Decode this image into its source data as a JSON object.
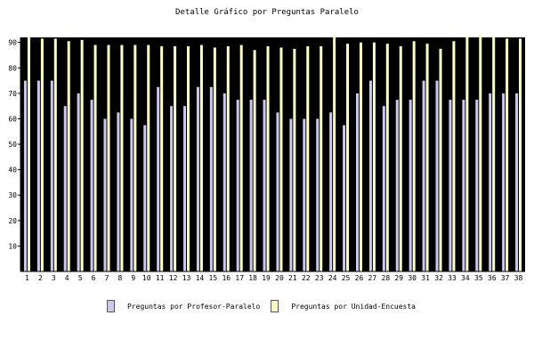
{
  "chart_data": {
    "type": "bar",
    "title": "Detalle Gráfico por Preguntas Paralelo",
    "xlabel": "",
    "ylabel": "",
    "ylim": [
      0,
      92
    ],
    "yticks": [
      10,
      20,
      30,
      40,
      50,
      60,
      70,
      80,
      90
    ],
    "categories": [
      "1",
      "2",
      "3",
      "4",
      "5",
      "6",
      "7",
      "8",
      "9",
      "10",
      "11",
      "12",
      "13",
      "14",
      "15",
      "16",
      "17",
      "18",
      "19",
      "20",
      "21",
      "22",
      "23",
      "24",
      "25",
      "26",
      "27",
      "28",
      "29",
      "30",
      "31",
      "32",
      "33",
      "34",
      "35",
      "36",
      "37",
      "38"
    ],
    "series": [
      {
        "name": "Preguntas por Profesor-Paralelo",
        "color": "#c8c8f0",
        "values": [
          75,
          75,
          75,
          65,
          70,
          67.5,
          60,
          62.5,
          60,
          57.5,
          72.5,
          65,
          65,
          72.5,
          72.5,
          70,
          67.5,
          67.5,
          67.5,
          62.5,
          60,
          60,
          60,
          62.5,
          57.5,
          70,
          75,
          65,
          67.5,
          67.5,
          75,
          75,
          67.5,
          67.5,
          67.5,
          70,
          70,
          70
        ]
      },
      {
        "name": "Preguntas por Unidad-Encuesta",
        "color": "#ffffc8",
        "values": [
          92,
          91.5,
          91.5,
          90.5,
          91,
          89,
          89,
          89,
          89,
          89,
          88.5,
          88.5,
          88.5,
          89,
          88,
          88.5,
          89,
          87,
          88.5,
          88,
          87.5,
          88.5,
          88.5,
          92.5,
          89.5,
          90,
          90,
          89.5,
          88.5,
          90.5,
          89.5,
          87.5,
          90.5,
          92.5,
          92.5,
          92.5,
          91.5,
          91.5
        ]
      }
    ],
    "grid": false,
    "background": "#000000",
    "legend": "bottom"
  }
}
